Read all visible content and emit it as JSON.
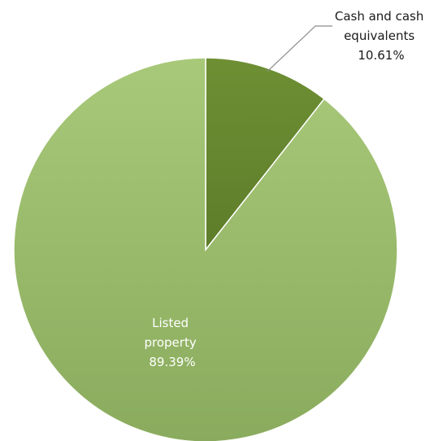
{
  "chart_data": {
    "type": "pie",
    "title": "",
    "start_angle_deg": 0,
    "direction": "clockwise",
    "slices": [
      {
        "category": "Cash and cash equivalents",
        "value": 10.61,
        "label_lines": [
          "Cash and cash",
          "equivalents",
          "10.61%"
        ],
        "label_position": "outside-top-right-with-leader",
        "color": "#5e7d2a",
        "color_light": "#6e8f34"
      },
      {
        "category": "Listed property",
        "value": 89.39,
        "label_lines": [
          "Listed",
          "property",
          "89.39%"
        ],
        "label_position": "inside-lower-left",
        "color": "#8aab5d",
        "color_light": "#a8c979"
      }
    ],
    "legend": "none"
  }
}
